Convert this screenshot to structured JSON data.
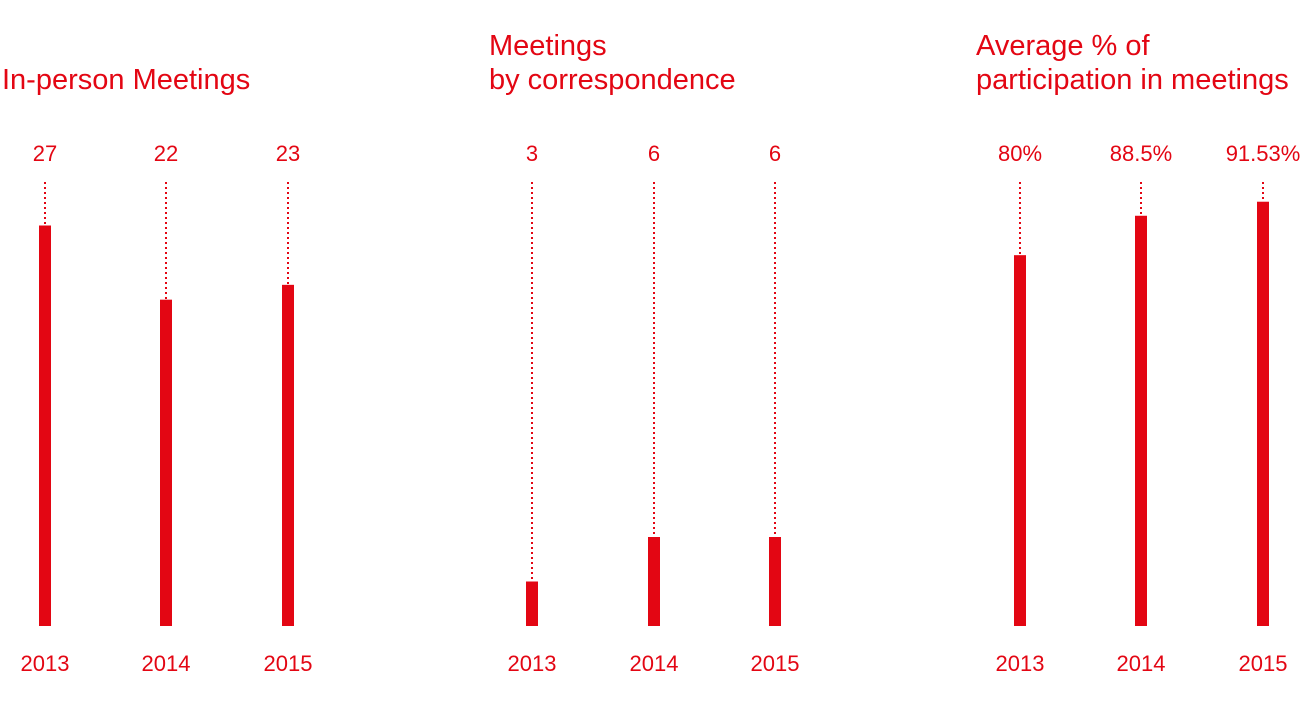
{
  "chart_data": [
    {
      "type": "bar",
      "title_lines": [
        "In-person Meetings"
      ],
      "categories": [
        "2013",
        "2014",
        "2015"
      ],
      "values": [
        27,
        22,
        23
      ],
      "value_labels": [
        "27",
        "22",
        "23"
      ],
      "ylim": [
        0,
        30
      ],
      "grid": false,
      "color": "#e30613"
    },
    {
      "type": "bar",
      "title_lines": [
        "Meetings",
        "by correspondence"
      ],
      "categories": [
        "2013",
        "2014",
        "2015"
      ],
      "values": [
        3,
        6,
        6
      ],
      "value_labels": [
        "3",
        "6",
        "6"
      ],
      "ylim": [
        0,
        30
      ],
      "grid": false,
      "color": "#e30613"
    },
    {
      "type": "bar",
      "title_lines": [
        "Average % of",
        "participation in meetings"
      ],
      "categories": [
        "2013",
        "2014",
        "2015"
      ],
      "values": [
        80,
        88.5,
        91.53
      ],
      "value_labels": [
        "80%",
        "88.5%",
        "91.53%"
      ],
      "ylim": [
        0,
        96
      ],
      "grid": false,
      "color": "#e30613"
    }
  ]
}
